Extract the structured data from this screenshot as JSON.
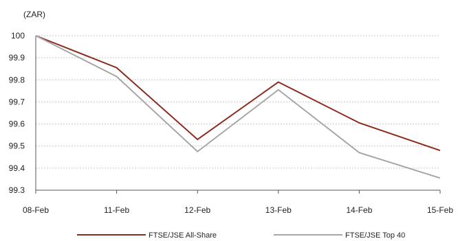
{
  "chart_data": {
    "type": "line",
    "unit_label": "(ZAR)",
    "categories": [
      "08-Feb",
      "11-Feb",
      "12-Feb",
      "13-Feb",
      "14-Feb",
      "15-Feb"
    ],
    "ylim": [
      99.3,
      100
    ],
    "yticks": [
      "100",
      "99.9",
      "99.8",
      "99.7",
      "99.6",
      "99.5",
      "99.4",
      "99.3"
    ],
    "grid": true,
    "legend_position": "bottom",
    "series": [
      {
        "name": "FTSE/JSE All-Share",
        "color": "#8b2a1e",
        "values": [
          100,
          99.855,
          99.53,
          99.79,
          99.605,
          99.48
        ]
      },
      {
        "name": "FTSE/JSE Top 40",
        "color": "#a6a6a6",
        "values": [
          100,
          99.815,
          99.475,
          99.755,
          99.47,
          99.355
        ]
      }
    ]
  }
}
